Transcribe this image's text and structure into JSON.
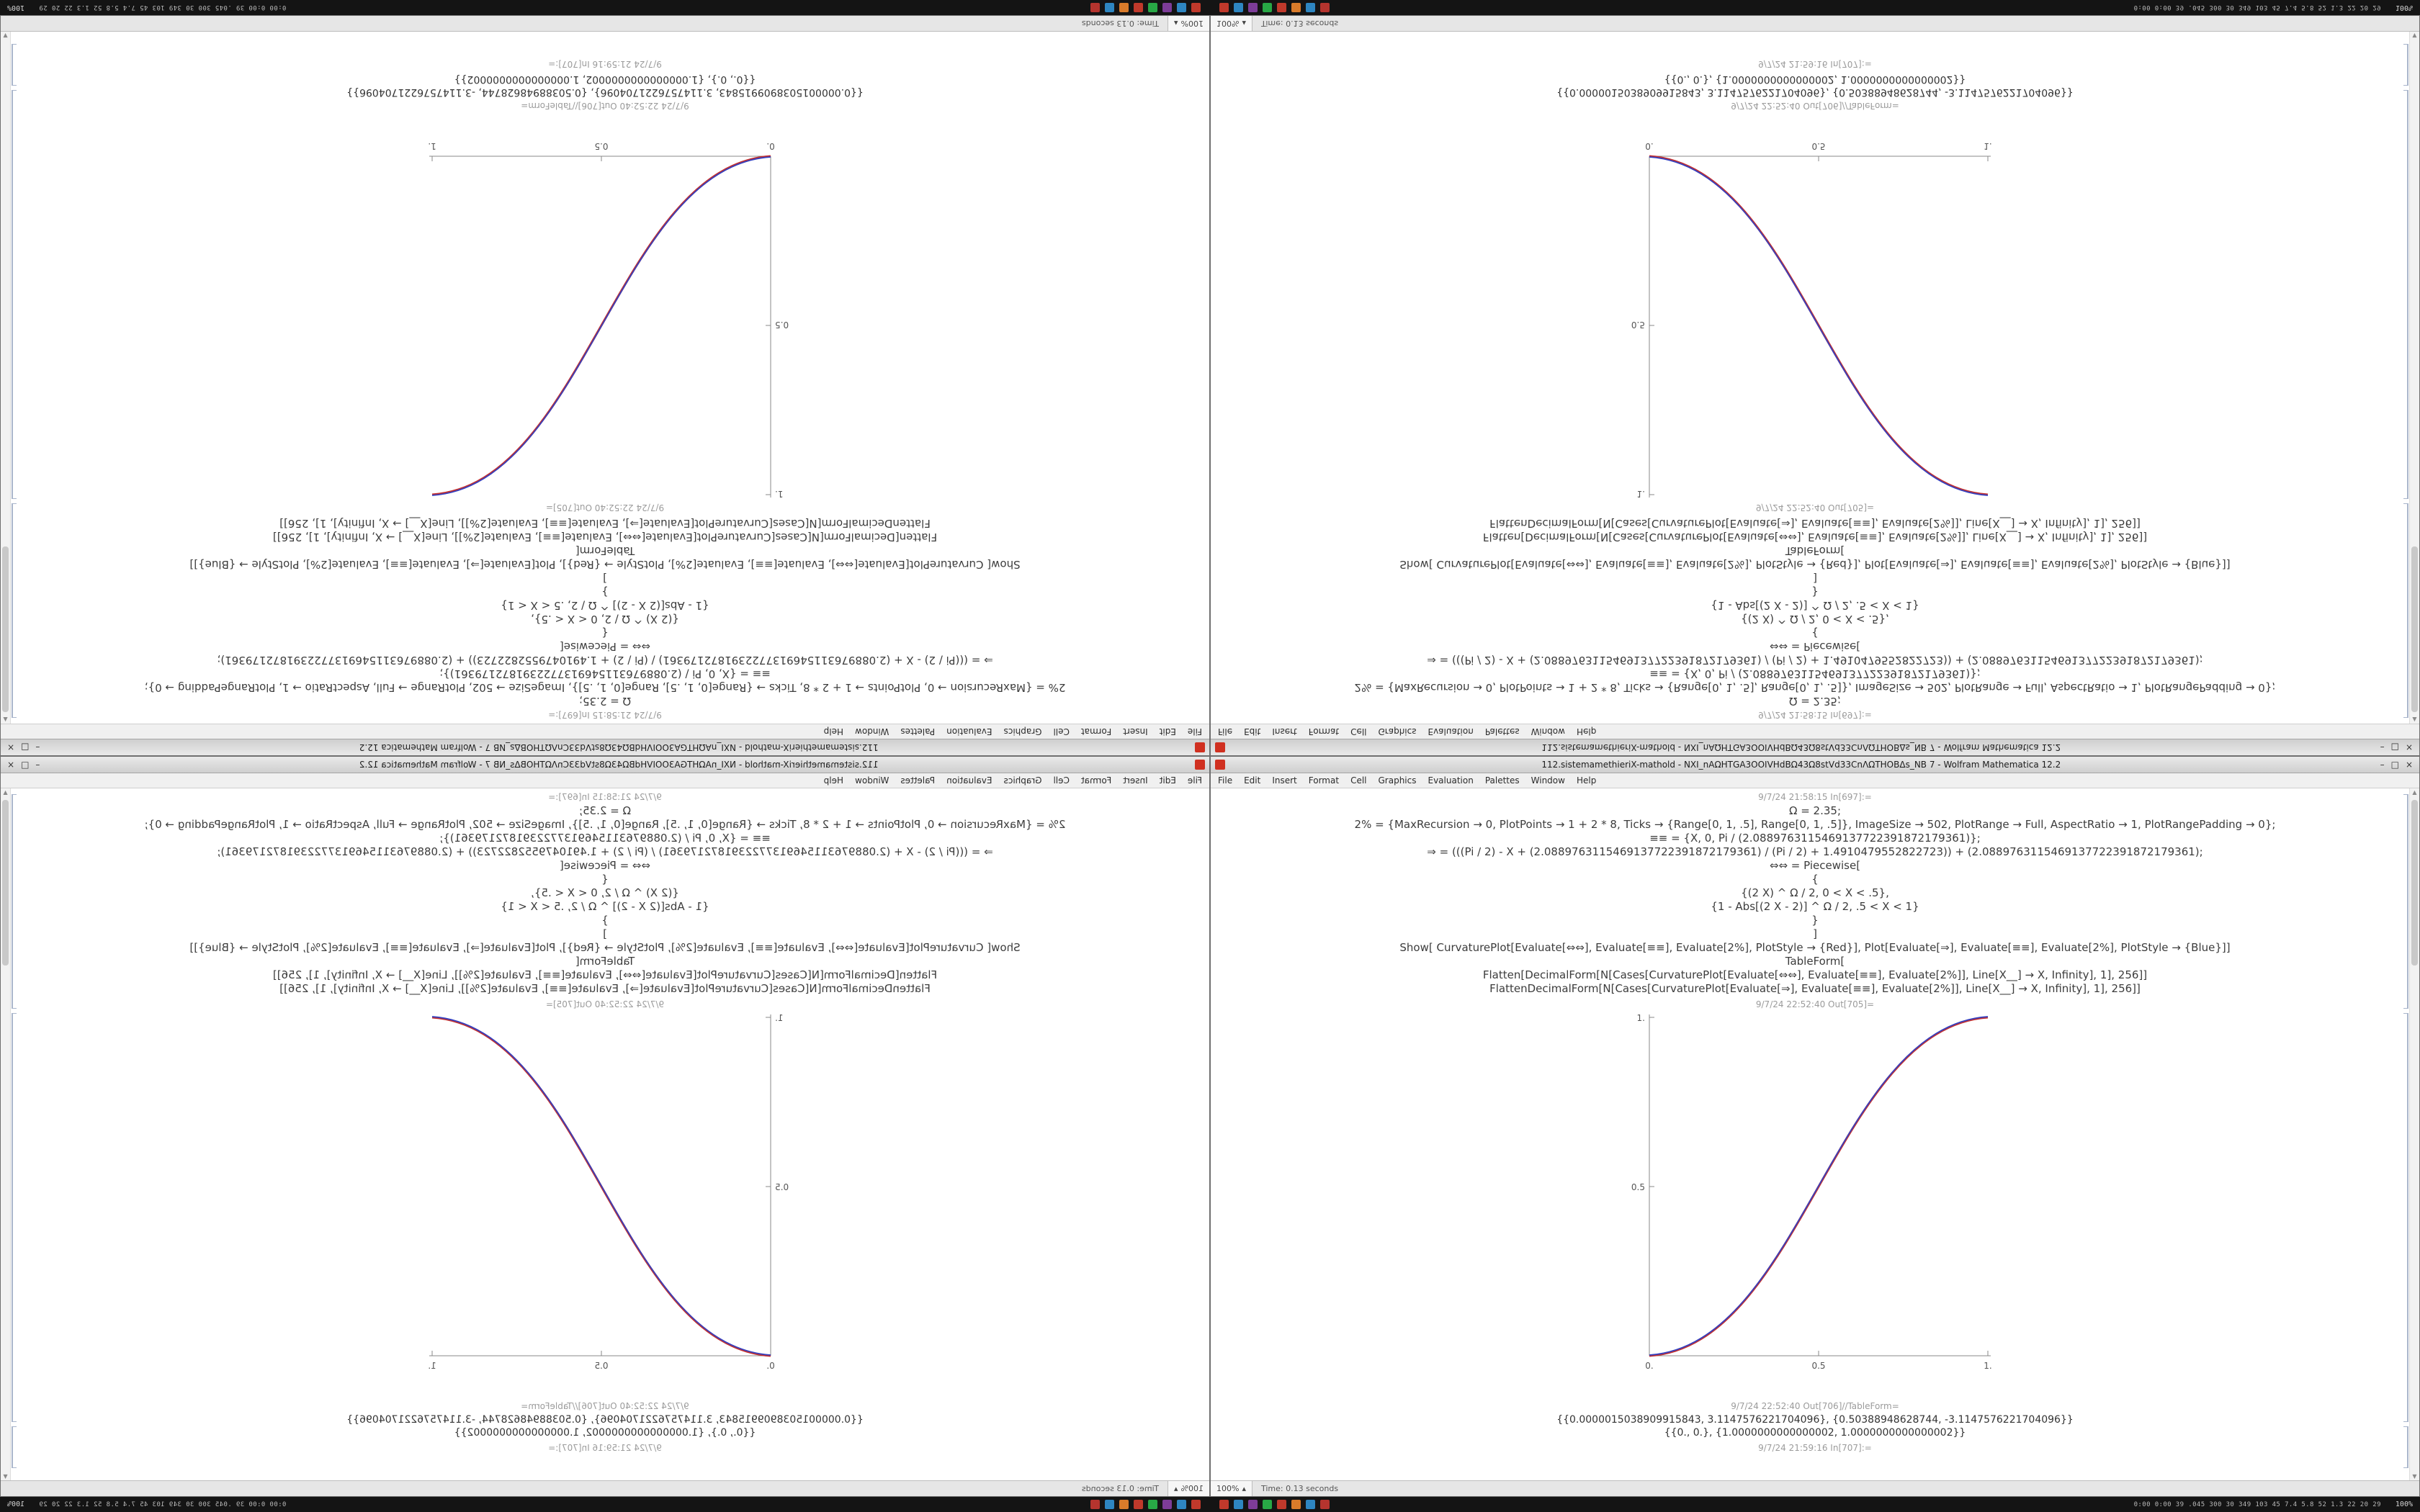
{
  "screen": {
    "description": "2x2 kaleidoscope arrangement of the same Wolfram Mathematica 12.2 notebook window: bottom-right original, bottom-left mirrored horizontally, top-right flipped vertically, top-left rotated 180 degrees; dark taskbar strips at top (flipped) and bottom."
  },
  "taskbar": {
    "app_icons": [
      {
        "name": "taskbar-app-icon-1",
        "color": "#c0392b"
      },
      {
        "name": "taskbar-app-icon-2",
        "color": "#2e86c1"
      },
      {
        "name": "taskbar-app-icon-3",
        "color": "#7d3c98"
      },
      {
        "name": "taskbar-app-icon-4",
        "color": "#28a745"
      },
      {
        "name": "taskbar-app-icon-5",
        "color": "#c0392b"
      },
      {
        "name": "taskbar-app-icon-6",
        "color": "#d97b2a"
      },
      {
        "name": "taskbar-app-icon-7",
        "color": "#2e86c1"
      },
      {
        "name": "taskbar-app-icon-8",
        "color": "#b5342e"
      }
    ],
    "stats_text": "0:00 0:00 39 .045 300 30 349 103 45 7.4 5.8 52 1.3 22 20 29",
    "corner_text": "100%"
  },
  "window": {
    "title": "112.sistemamethieriX-mathold - NXI_nAΩHTGA3OOIVHdBΩ43Ω8stVd33CnΛΩTHOBΔs_NB 7 - Wolfram Mathematica 12.2",
    "controls": {
      "minimize": "–",
      "maximize": "□",
      "close": "×"
    },
    "menu": [
      "File",
      "Edit",
      "Insert",
      "Format",
      "Cell",
      "Graphics",
      "Evaluation",
      "Palettes",
      "Window",
      "Help"
    ],
    "icons": {
      "scroll_up": "▲",
      "scroll_down": "▼",
      "zoom_arrow": "▴"
    },
    "cells": {
      "in_label_top": "9/7/24 21:58:15 In[697]:=",
      "input_lines": [
        "Ω = 2.35;",
        "2% = {MaxRecursion → 0, PlotPoints → 1 + 2 * 8, Ticks → {Range[0, 1, .5], Range[0, 1, .5]}, ImageSize → 502, PlotRange → Full, AspectRatio → 1, PlotRangePadding → 0};",
        "≡≡ = {X, 0, Pi / (2.0889763115469137722391872179361)};",
        "⇒ = (((Pi / 2) - X + (2.0889763115469137722391872179361) / (Pi / 2) + 1.4910479552822723)) + (2.0889763115469137722391872179361);",
        "⇔⇔ = Piecewise[",
        "{",
        "{(2 X) ^ Ω / 2, 0 < X < .5},",
        "{1 - Abs[(2 X - 2)] ^ Ω / 2, .5 < X < 1}",
        "}",
        "]",
        "Show[ CurvaturePlot[Evaluate[⇔⇔], Evaluate[≡≡], Evaluate[2%], PlotStyle → {Red}], Plot[Evaluate[⇒], Evaluate[≡≡], Evaluate[2%], PlotStyle → {Blue}]]",
        "TableForm[",
        "Flatten[DecimalForm[N[Cases[CurvaturePlot[Evaluate[⇔⇔], Evaluate[≡≡], Evaluate[2%]], Line[X__] → X, Infinity], 1], 256]]",
        "FlattenDecimalForm[N[Cases[CurvaturePlot[Evaluate[⇒], Evaluate[≡≡], Evaluate[2%]], Line[X__] → X, Infinity], 1], 256]]"
      ],
      "out_label_plot": "9/7/24 22:52:40 Out[705]=",
      "out_label_table": "9/7/24 22:52:40 Out[706]//TableForm=",
      "table_lines": [
        "{{0.0000015038909915843, 3.1147576221704096}, {0.50388948628744, -3.1147576221704096}}",
        "{{0., 0.}, {1.0000000000000002, 1.0000000000000002}}"
      ],
      "in_label_bottom": "9/7/24 21:59:16 In[707]:="
    },
    "status": {
      "zoom": "100%",
      "time": "Time: 0.13 seconds"
    },
    "plot": {
      "x_tick_labels": [
        "0.",
        "0.5",
        "1."
      ],
      "y_tick_labels": [
        "0.5",
        "1."
      ]
    }
  },
  "chart_data": {
    "type": "line",
    "title": "",
    "xlabel": "",
    "ylabel": "",
    "xlim": [
      0,
      1
    ],
    "ylim": [
      0,
      1
    ],
    "x_ticks": [
      0,
      0.5,
      1
    ],
    "y_ticks": [
      0.5,
      1
    ],
    "grid": false,
    "legend": "none",
    "x": [
      0,
      0.1,
      0.2,
      0.3,
      0.4,
      0.5,
      0.6,
      0.7,
      0.8,
      0.9,
      1.0
    ],
    "series": [
      {
        "name": "CurvaturePlot (Red)",
        "color": "#c23030",
        "values": [
          0,
          0.011,
          0.058,
          0.151,
          0.296,
          0.5,
          0.704,
          0.849,
          0.942,
          0.989,
          1.0
        ]
      },
      {
        "name": "Plot (Blue)",
        "color": "#3340c0",
        "values": [
          0,
          0.011,
          0.058,
          0.151,
          0.296,
          0.5,
          0.704,
          0.849,
          0.942,
          0.989,
          1.0
        ]
      }
    ],
    "note": "Sigmoid S-curve from (0,0) to (1,1); shown mirrored/rotated in the four quadrant windows"
  }
}
